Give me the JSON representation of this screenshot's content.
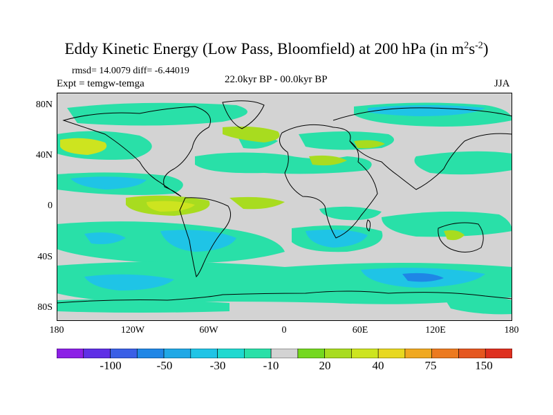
{
  "title": {
    "main": "Eddy Kinetic Energy (Low Pass, Bloomfield) at 200 hPa (in m",
    "sup1": "2",
    "mid": "s",
    "sup2": "-2",
    "end": ")"
  },
  "stats": "rmsd= 14.0079 diff= -6.44019",
  "expt": "Expt = temgw-temga",
  "period": "22.0kyr BP - 00.0kyr BP",
  "season": "JJA",
  "map": {
    "lat_labels": [
      "80N",
      "40N",
      "0",
      "40S",
      "80S"
    ],
    "lon_labels": [
      "180",
      "120W",
      "60W",
      "0",
      "60E",
      "120E",
      "180"
    ],
    "background_color": "#d3d3d3"
  },
  "colorbar": {
    "colors": [
      "#8c1fe6",
      "#5f2ee6",
      "#3a5fe6",
      "#1f86e6",
      "#1fa8e6",
      "#1fc4e6",
      "#1fd9d0",
      "#29e0a8",
      "#d3d3d3",
      "#74d81f",
      "#a8dc1f",
      "#cde41f",
      "#e8d81f",
      "#f0a81f",
      "#ec7a1f",
      "#e5561f",
      "#de2f1f"
    ],
    "labels": [
      "-100",
      "-50",
      "-30",
      "-10",
      "20",
      "40",
      "75",
      "150"
    ]
  }
}
